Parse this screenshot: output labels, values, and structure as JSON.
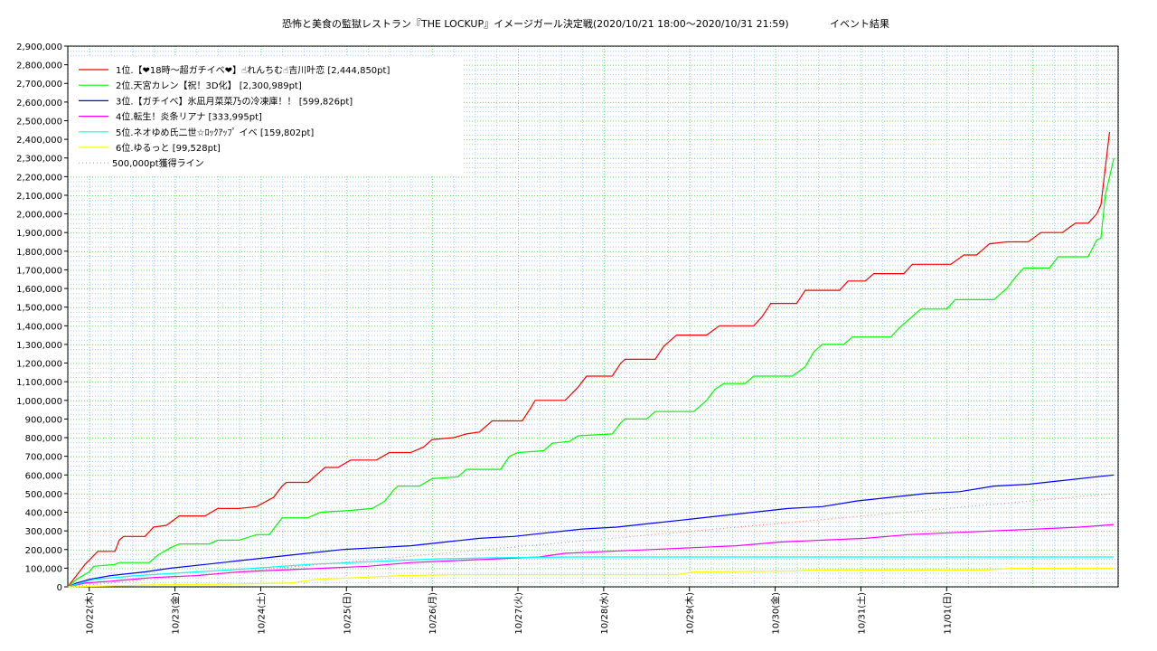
{
  "chart_data": {
    "type": "line",
    "title": "恐怖と美食の監獄レストラン『THE LOCKUP』イメージガール決定戦(2020/10/21 18:00〜2020/10/31 21:59)",
    "subtitle": "イベント結果",
    "xlabel": "",
    "ylabel": "",
    "ylim": [
      0,
      2900000
    ],
    "y_ticks": [
      0,
      100000,
      200000,
      300000,
      400000,
      500000,
      600000,
      700000,
      800000,
      900000,
      1000000,
      1100000,
      1200000,
      1300000,
      1400000,
      1500000,
      1600000,
      1700000,
      1800000,
      1900000,
      2000000,
      2100000,
      2200000,
      2300000,
      2400000,
      2500000,
      2600000,
      2700000,
      2800000,
      2900000
    ],
    "y_tick_labels": [
      "0",
      "100,000",
      "200,000",
      "300,000",
      "400,000",
      "500,000",
      "600,000",
      "700,000",
      "800,000",
      "900,000",
      "1,000,000",
      "1,100,000",
      "1,200,000",
      "1,300,000",
      "1,400,000",
      "1,500,000",
      "1,600,000",
      "1,700,000",
      "1,800,000",
      "1,900,000",
      "2,000,000",
      "2,100,000",
      "2,200,000",
      "2,300,000",
      "2,400,000",
      "2,500,000",
      "2,600,000",
      "2,700,000",
      "2,800,000",
      "2,900,000"
    ],
    "x_tick_days": [
      1.25,
      2.25,
      3.25,
      4.25,
      5.25,
      6.25,
      7.25,
      8.25,
      9.25,
      10.25
    ],
    "x_tick_labels": [
      "10/22(木)",
      "10/23(金)",
      "10/24(土)",
      "10/25(日)",
      "10/26(月)",
      "10/27(火)",
      "10/28(水)",
      "10/29(木)",
      "10/30(金)",
      "10/31(土)",
      "11/01(日)"
    ],
    "xlim_days": [
      0.0,
      10.3
    ],
    "grid": true,
    "legend_position": "top-left",
    "series": [
      {
        "name": "1位.【❤18時〜超ガチイベ❤】☝れんちむ☝吉川叶恋 [2,444,850pt]",
        "color": "#ff0000",
        "points": [
          [
            0,
            0
          ],
          [
            0.1,
            60000
          ],
          [
            0.2,
            120000
          ],
          [
            0.35,
            190000
          ],
          [
            0.55,
            190000
          ],
          [
            0.6,
            250000
          ],
          [
            0.65,
            270000
          ],
          [
            0.9,
            270000
          ],
          [
            1.0,
            320000
          ],
          [
            1.15,
            330000
          ],
          [
            1.3,
            380000
          ],
          [
            1.6,
            380000
          ],
          [
            1.75,
            420000
          ],
          [
            2.0,
            420000
          ],
          [
            2.2,
            430000
          ],
          [
            2.4,
            480000
          ],
          [
            2.5,
            540000
          ],
          [
            2.55,
            560000
          ],
          [
            2.8,
            560000
          ],
          [
            2.95,
            620000
          ],
          [
            3.0,
            640000
          ],
          [
            3.15,
            640000
          ],
          [
            3.3,
            680000
          ],
          [
            3.6,
            680000
          ],
          [
            3.75,
            720000
          ],
          [
            4.0,
            720000
          ],
          [
            4.15,
            750000
          ],
          [
            4.25,
            790000
          ],
          [
            4.5,
            800000
          ],
          [
            4.65,
            820000
          ],
          [
            4.8,
            830000
          ],
          [
            4.95,
            890000
          ],
          [
            5.3,
            890000
          ],
          [
            5.4,
            960000
          ],
          [
            5.45,
            1000000
          ],
          [
            5.8,
            1000000
          ],
          [
            5.95,
            1070000
          ],
          [
            6.05,
            1130000
          ],
          [
            6.35,
            1130000
          ],
          [
            6.45,
            1200000
          ],
          [
            6.5,
            1220000
          ],
          [
            6.85,
            1220000
          ],
          [
            6.95,
            1290000
          ],
          [
            7.1,
            1350000
          ],
          [
            7.45,
            1350000
          ],
          [
            7.6,
            1400000
          ],
          [
            8.0,
            1400000
          ],
          [
            8.1,
            1450000
          ],
          [
            8.2,
            1520000
          ],
          [
            8.5,
            1520000
          ],
          [
            8.6,
            1590000
          ],
          [
            9.0,
            1590000
          ],
          [
            9.1,
            1640000
          ],
          [
            9.3,
            1640000
          ],
          [
            9.4,
            1680000
          ],
          [
            9.75,
            1680000
          ],
          [
            9.85,
            1730000
          ],
          [
            10.3,
            1730000
          ],
          [
            10.45,
            1780000
          ],
          [
            10.6,
            1780000
          ],
          [
            10.75,
            1840000
          ],
          [
            10.95,
            1850000
          ],
          [
            11.2,
            1850000
          ],
          [
            11.35,
            1900000
          ],
          [
            11.6,
            1900000
          ],
          [
            11.75,
            1950000
          ],
          [
            11.9,
            1950000
          ],
          [
            12.0,
            2000000
          ],
          [
            12.05,
            2050000
          ],
          [
            12.15,
            2440000
          ]
        ]
      },
      {
        "name": "2位.天宮カレン【祝！3D化】 [2,300,989pt]",
        "color": "#00ff00",
        "points": [
          [
            0,
            0
          ],
          [
            0.1,
            40000
          ],
          [
            0.25,
            80000
          ],
          [
            0.3,
            110000
          ],
          [
            0.55,
            120000
          ],
          [
            0.6,
            130000
          ],
          [
            0.95,
            130000
          ],
          [
            1.05,
            170000
          ],
          [
            1.2,
            210000
          ],
          [
            1.3,
            230000
          ],
          [
            1.65,
            230000
          ],
          [
            1.75,
            250000
          ],
          [
            2.0,
            250000
          ],
          [
            2.2,
            280000
          ],
          [
            2.35,
            280000
          ],
          [
            2.45,
            340000
          ],
          [
            2.5,
            370000
          ],
          [
            2.8,
            370000
          ],
          [
            2.95,
            400000
          ],
          [
            3.3,
            410000
          ],
          [
            3.55,
            420000
          ],
          [
            3.7,
            460000
          ],
          [
            3.8,
            520000
          ],
          [
            3.85,
            540000
          ],
          [
            4.1,
            540000
          ],
          [
            4.25,
            580000
          ],
          [
            4.55,
            590000
          ],
          [
            4.65,
            630000
          ],
          [
            5.05,
            630000
          ],
          [
            5.15,
            700000
          ],
          [
            5.25,
            720000
          ],
          [
            5.55,
            730000
          ],
          [
            5.65,
            770000
          ],
          [
            5.85,
            780000
          ],
          [
            5.95,
            810000
          ],
          [
            6.35,
            820000
          ],
          [
            6.45,
            880000
          ],
          [
            6.5,
            900000
          ],
          [
            6.75,
            900000
          ],
          [
            6.85,
            940000
          ],
          [
            7.3,
            940000
          ],
          [
            7.45,
            1000000
          ],
          [
            7.55,
            1060000
          ],
          [
            7.65,
            1090000
          ],
          [
            7.9,
            1090000
          ],
          [
            8.0,
            1130000
          ],
          [
            8.45,
            1130000
          ],
          [
            8.6,
            1180000
          ],
          [
            8.7,
            1260000
          ],
          [
            8.8,
            1300000
          ],
          [
            9.05,
            1300000
          ],
          [
            9.15,
            1340000
          ],
          [
            9.6,
            1340000
          ],
          [
            9.7,
            1390000
          ],
          [
            9.85,
            1450000
          ],
          [
            9.95,
            1490000
          ],
          [
            10.25,
            1490000
          ],
          [
            10.35,
            1540000
          ],
          [
            10.8,
            1540000
          ],
          [
            10.95,
            1600000
          ],
          [
            11.05,
            1660000
          ],
          [
            11.15,
            1710000
          ],
          [
            11.45,
            1710000
          ],
          [
            11.55,
            1770000
          ],
          [
            11.9,
            1770000
          ],
          [
            12.0,
            1860000
          ],
          [
            12.05,
            1870000
          ],
          [
            12.1,
            2100000
          ],
          [
            12.2,
            2300000
          ]
        ]
      },
      {
        "name": "3位.【ガチイベ】氷凪月菜菜乃の冷凍庫！！ [599,826pt]",
        "color": "#0000ff",
        "points": [
          [
            0,
            0
          ],
          [
            0.1,
            20000
          ],
          [
            0.25,
            40000
          ],
          [
            0.5,
            60000
          ],
          [
            0.9,
            80000
          ],
          [
            1.2,
            100000
          ],
          [
            1.6,
            120000
          ],
          [
            2.0,
            140000
          ],
          [
            2.4,
            160000
          ],
          [
            2.8,
            180000
          ],
          [
            3.2,
            200000
          ],
          [
            3.6,
            210000
          ],
          [
            4.0,
            220000
          ],
          [
            4.4,
            240000
          ],
          [
            4.8,
            260000
          ],
          [
            5.2,
            270000
          ],
          [
            5.6,
            290000
          ],
          [
            6.0,
            310000
          ],
          [
            6.4,
            320000
          ],
          [
            6.8,
            340000
          ],
          [
            7.2,
            360000
          ],
          [
            7.6,
            380000
          ],
          [
            8.0,
            400000
          ],
          [
            8.4,
            420000
          ],
          [
            8.8,
            430000
          ],
          [
            9.2,
            460000
          ],
          [
            9.6,
            480000
          ],
          [
            10.0,
            500000
          ],
          [
            10.4,
            510000
          ],
          [
            10.8,
            540000
          ],
          [
            11.2,
            550000
          ],
          [
            11.6,
            570000
          ],
          [
            12.0,
            590000
          ],
          [
            12.2,
            600000
          ]
        ]
      },
      {
        "name": "4位.転生！炎条リアナ [333,995pt]",
        "color": "#ff00ff",
        "points": [
          [
            0,
            0
          ],
          [
            0.2,
            20000
          ],
          [
            0.5,
            30000
          ],
          [
            1.0,
            50000
          ],
          [
            1.5,
            60000
          ],
          [
            2.0,
            80000
          ],
          [
            2.5,
            90000
          ],
          [
            3.0,
            100000
          ],
          [
            3.5,
            110000
          ],
          [
            4.0,
            130000
          ],
          [
            4.5,
            140000
          ],
          [
            5.0,
            150000
          ],
          [
            5.5,
            160000
          ],
          [
            5.8,
            180000
          ],
          [
            6.3,
            190000
          ],
          [
            6.8,
            200000
          ],
          [
            7.3,
            210000
          ],
          [
            7.8,
            220000
          ],
          [
            8.3,
            240000
          ],
          [
            8.8,
            250000
          ],
          [
            9.3,
            260000
          ],
          [
            9.8,
            280000
          ],
          [
            10.3,
            290000
          ],
          [
            10.8,
            300000
          ],
          [
            11.3,
            310000
          ],
          [
            11.8,
            320000
          ],
          [
            12.2,
            334000
          ]
        ]
      },
      {
        "name": "5位.ネオゆめ氏二世☆ﾛｯｸｱｯﾌﾟ イベ [159,802pt]",
        "color": "#00ffff",
        "points": [
          [
            0,
            0
          ],
          [
            0.3,
            40000
          ],
          [
            0.8,
            60000
          ],
          [
            1.5,
            80000
          ],
          [
            2.2,
            100000
          ],
          [
            2.8,
            120000
          ],
          [
            3.3,
            130000
          ],
          [
            3.8,
            140000
          ],
          [
            4.3,
            150000
          ],
          [
            4.9,
            155000
          ],
          [
            5.4,
            158000
          ],
          [
            5.9,
            160000
          ],
          [
            12.2,
            160000
          ]
        ]
      },
      {
        "name": "6位.ゆるっと [99,528pt]",
        "color": "#ffff00",
        "points": [
          [
            0,
            0
          ],
          [
            0.5,
            5000
          ],
          [
            1.0,
            10000
          ],
          [
            2.0,
            15000
          ],
          [
            2.6,
            20000
          ],
          [
            2.9,
            40000
          ],
          [
            3.4,
            50000
          ],
          [
            3.9,
            60000
          ],
          [
            4.5,
            65000
          ],
          [
            7.1,
            65000
          ],
          [
            7.3,
            80000
          ],
          [
            8.5,
            85000
          ],
          [
            8.7,
            90000
          ],
          [
            10.7,
            90000
          ],
          [
            11.0,
            99000
          ],
          [
            12.2,
            99500
          ]
        ]
      },
      {
        "name": "500,000pt獲得ライン",
        "color": "#ff8080",
        "dashed": true,
        "points": [
          [
            0,
            0
          ],
          [
            12.2,
            500000
          ]
        ]
      }
    ]
  }
}
